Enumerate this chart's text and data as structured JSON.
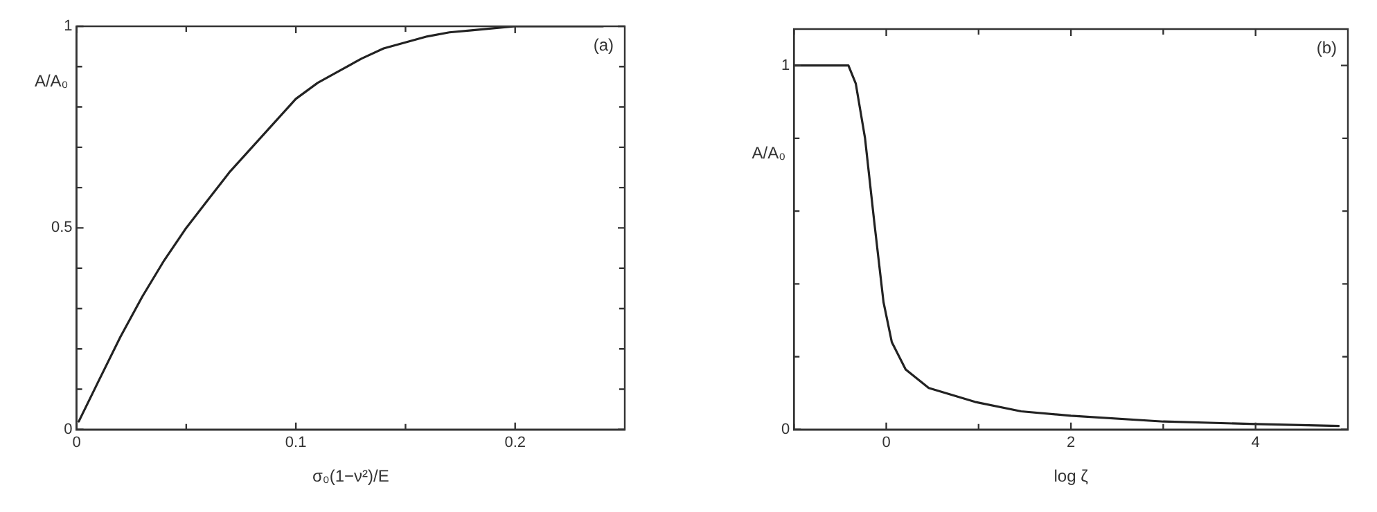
{
  "chart_data": [
    {
      "type": "line",
      "xlabel": "σ₀(1−ν²)/E",
      "ylabel": "A/A₀",
      "annotations": [
        "(a)"
      ],
      "xlim": [
        0,
        0.25
      ],
      "ylim": [
        0,
        1
      ],
      "xticks": [
        0,
        {
          "value": 0.05,
          "label": null
        },
        0.1,
        {
          "value": 0.15,
          "label": null
        },
        0.2
      ],
      "yticks": [
        0,
        {
          "value": 0.1,
          "label": null
        },
        {
          "value": 0.2,
          "label": null
        },
        {
          "value": 0.3,
          "label": null
        },
        {
          "value": 0.4,
          "label": null
        },
        0.5,
        {
          "value": 0.6,
          "label": null
        },
        {
          "value": 0.7,
          "label": null
        },
        {
          "value": 0.8,
          "label": null
        },
        {
          "value": 0.9,
          "label": null
        },
        1
      ],
      "grid": false,
      "legend": false,
      "marker": "none",
      "line_style": "solid",
      "series": [
        {
          "color": "#222222",
          "x": [
            0.001,
            0.01,
            0.02,
            0.03,
            0.04,
            0.05,
            0.06,
            0.07,
            0.08,
            0.09,
            0.1,
            0.11,
            0.12,
            0.13,
            0.14,
            0.15,
            0.16,
            0.17,
            0.18,
            0.19,
            0.2,
            0.22,
            0.24
          ],
          "values": [
            0.02,
            0.12,
            0.23,
            0.33,
            0.42,
            0.5,
            0.57,
            0.64,
            0.7,
            0.76,
            0.82,
            0.86,
            0.89,
            0.92,
            0.945,
            0.96,
            0.975,
            0.985,
            0.99,
            0.995,
            1,
            1,
            1
          ]
        }
      ]
    },
    {
      "type": "line",
      "xlabel": "log ζ",
      "ylabel": "A/A₀",
      "annotations": [
        "(b)"
      ],
      "xlim": [
        -1,
        5
      ],
      "ylim": [
        0,
        1.1
      ],
      "xticks": [
        {
          "value": -1,
          "label": null
        },
        0,
        {
          "value": 1,
          "label": null
        },
        2,
        {
          "value": 3,
          "label": null
        },
        4
      ],
      "yticks": [
        0,
        {
          "value": 0.2,
          "label": null
        },
        {
          "value": 0.4,
          "label": null
        },
        {
          "value": 0.6,
          "label": null
        },
        {
          "value": 0.8,
          "label": null
        },
        1
      ],
      "grid": false,
      "legend": false,
      "marker": "none",
      "line_style": "solid",
      "series": [
        {
          "color": "#222222",
          "x": [
            -1,
            -0.5,
            -0.41,
            -0.33,
            -0.23,
            -0.13,
            -0.03,
            0.06,
            0.21,
            0.46,
            0.96,
            1.46,
            2,
            3,
            4,
            4.9
          ],
          "values": [
            1,
            1,
            1,
            0.95,
            0.8,
            0.57,
            0.35,
            0.24,
            0.165,
            0.114,
            0.076,
            0.05,
            0.038,
            0.022,
            0.015,
            0.01
          ]
        }
      ]
    }
  ]
}
